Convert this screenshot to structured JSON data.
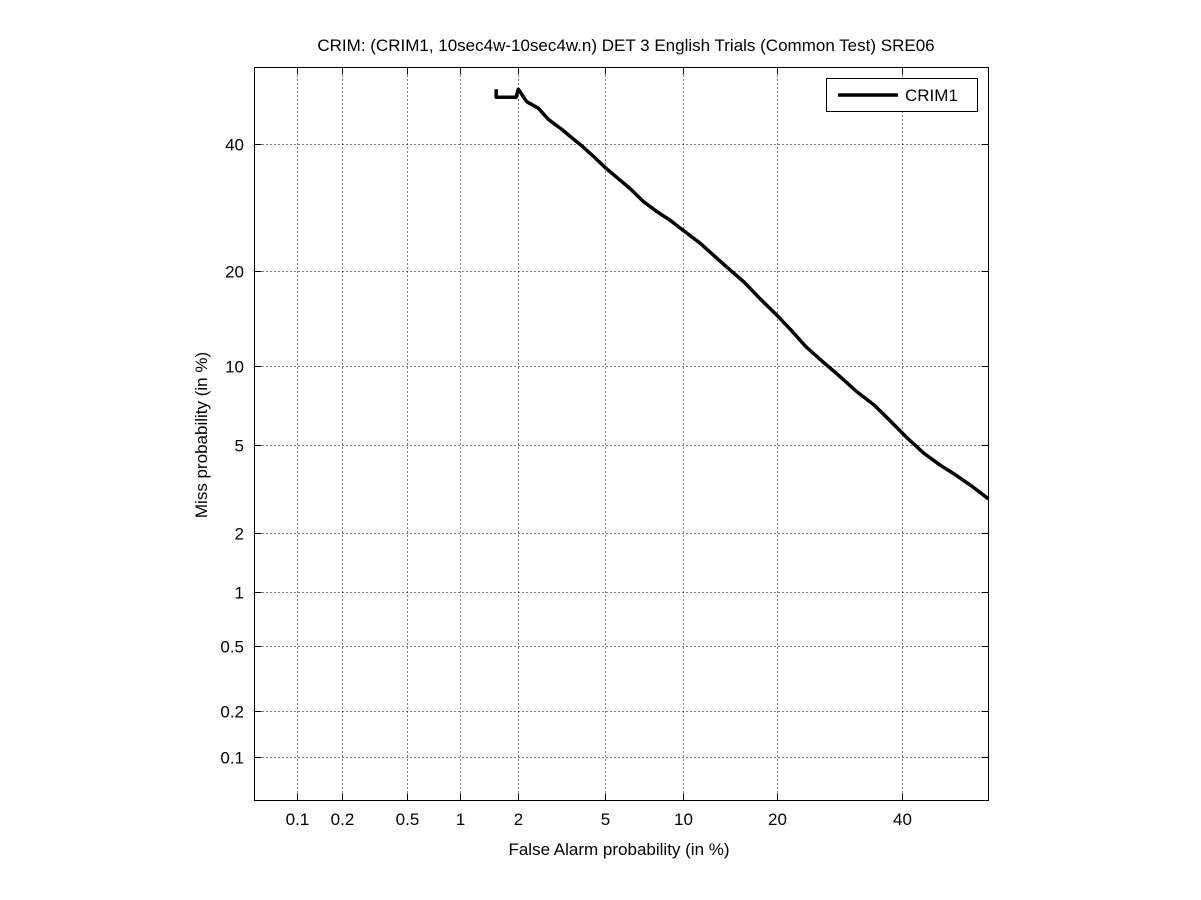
{
  "chart_data": {
    "type": "line",
    "title": "CRIM: (CRIM1, 10sec4w-10sec4w.n) DET 3 English Trials (Common Test) SRE06",
    "xlabel": "False Alarm probability (in %)",
    "ylabel": "Miss probability (in %)",
    "x_scale": "normal-deviate (probit)",
    "y_scale": "normal-deviate (probit)",
    "xlim": [
      0.05,
      56
    ],
    "ylim": [
      0.05,
      54
    ],
    "x_ticks": [
      0.1,
      0.2,
      0.5,
      1,
      2,
      5,
      10,
      20,
      40
    ],
    "x_tick_labels": [
      "0.1",
      "0.2",
      "0.5",
      "1",
      "2",
      "5",
      "10",
      "20",
      "40"
    ],
    "y_ticks": [
      0.1,
      0.2,
      0.5,
      1,
      2,
      5,
      10,
      20,
      40
    ],
    "y_tick_labels": [
      "0.1",
      "0.2",
      "0.5",
      "1",
      "2",
      "5",
      "10",
      "20",
      "40"
    ],
    "grid": true,
    "legend_position": "top-right",
    "series": [
      {
        "name": "CRIM1",
        "color": "#000000",
        "x": [
          1.55,
          1.55,
          1.95,
          2.0,
          2.2,
          2.5,
          2.8,
          3.2,
          3.6,
          4.0,
          4.5,
          5.0,
          5.6,
          6.3,
          7.1,
          8.0,
          9.0,
          10.0,
          11.5,
          13.0,
          14.5,
          16.0,
          18.0,
          20.0,
          22.0,
          24.0,
          26.5,
          29.0,
          32.0,
          35.0,
          38.0,
          41.0,
          44.0,
          47.0,
          50.0,
          53.0,
          56.0
        ],
        "y": [
          50.0,
          48.5,
          48.5,
          50.0,
          47.7,
          46.5,
          44.4,
          42.7,
          41.0,
          39.5,
          37.6,
          35.8,
          34.1,
          32.3,
          30.2,
          28.6,
          27.2,
          25.7,
          23.8,
          21.8,
          20.1,
          18.6,
          16.5,
          14.8,
          13.2,
          11.7,
          10.4,
          9.3,
          8.1,
          7.2,
          6.2,
          5.3,
          4.6,
          4.1,
          3.7,
          3.3,
          2.9
        ]
      }
    ]
  }
}
